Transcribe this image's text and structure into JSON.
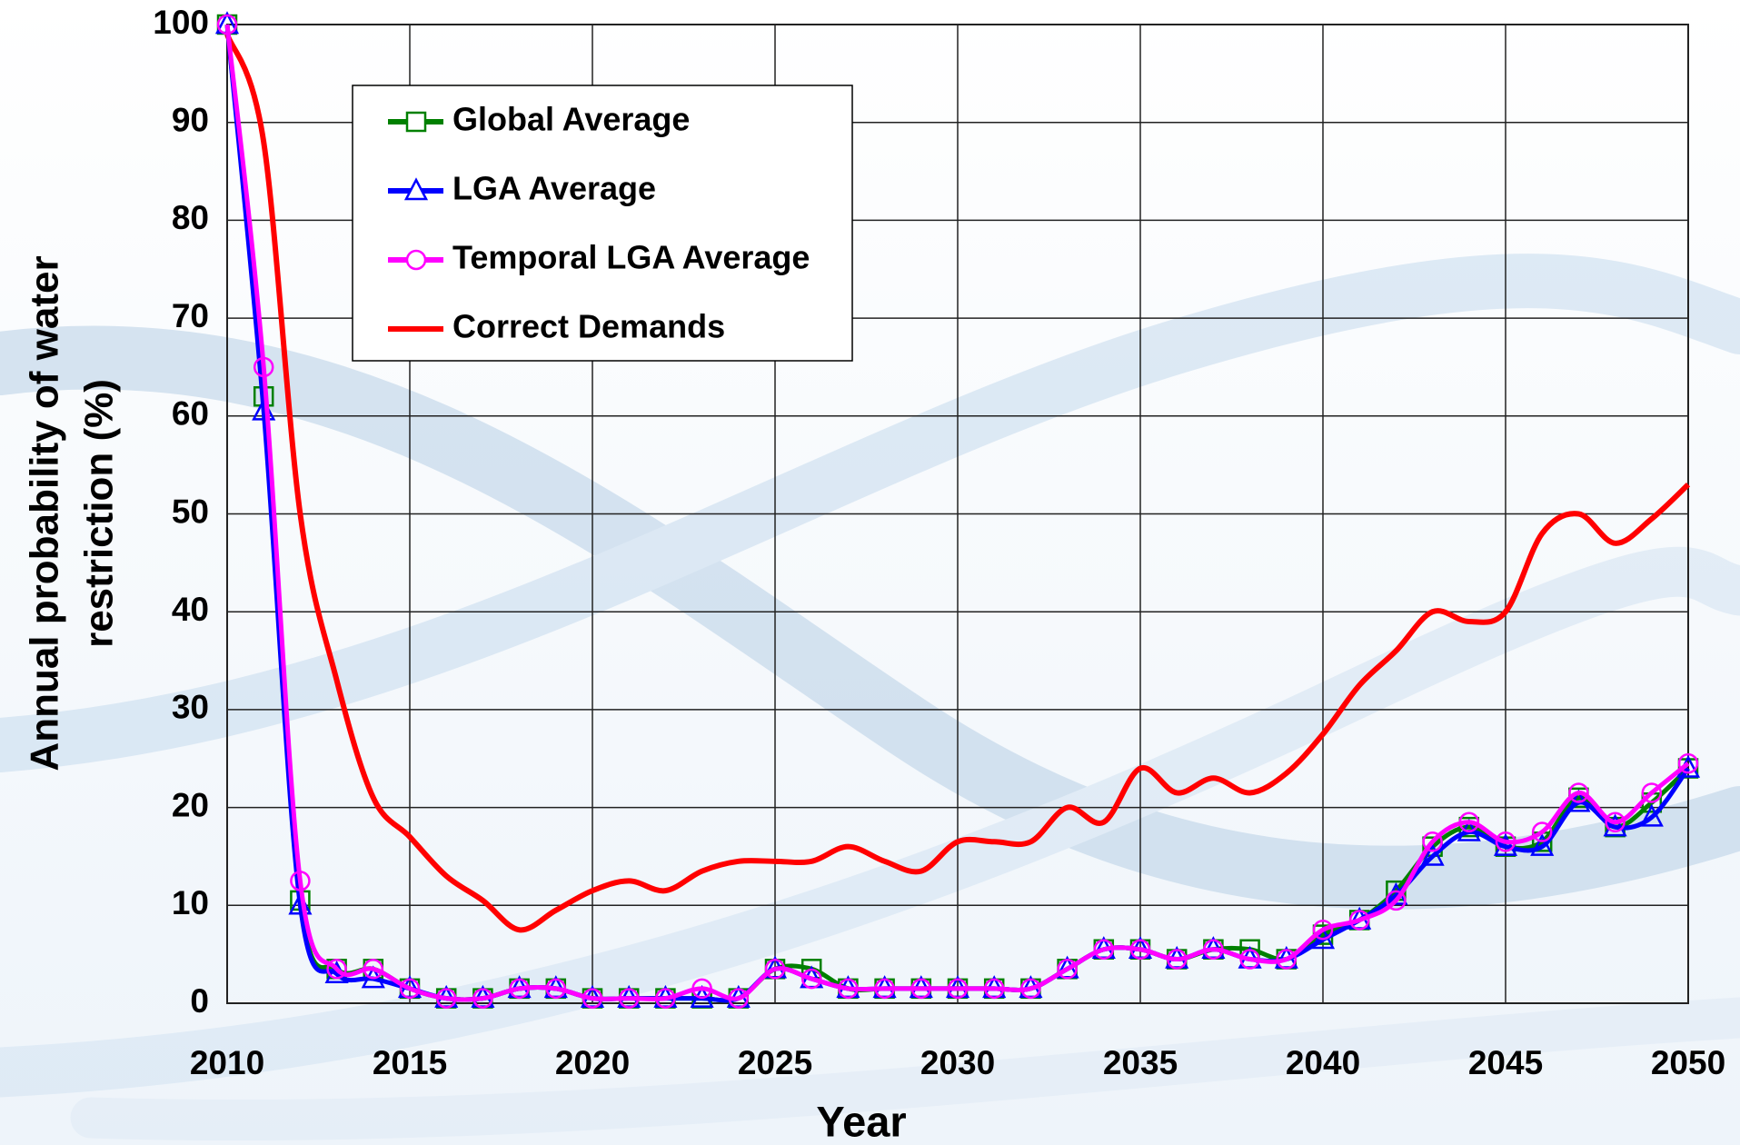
{
  "chart_data": {
    "type": "line",
    "x_label": "Year",
    "y_label": [
      "Annual probability of water",
      "restriction (%)"
    ],
    "x": [
      2010,
      2011,
      2012,
      2013,
      2014,
      2015,
      2016,
      2017,
      2018,
      2019,
      2020,
      2021,
      2022,
      2023,
      2024,
      2025,
      2026,
      2027,
      2028,
      2029,
      2030,
      2031,
      2032,
      2033,
      2034,
      2035,
      2036,
      2037,
      2038,
      2039,
      2040,
      2041,
      2042,
      2043,
      2044,
      2045,
      2046,
      2047,
      2048,
      2049,
      2050
    ],
    "series": [
      {
        "name": "Global Average",
        "color": "#008000",
        "marker": "square",
        "values": [
          100,
          62,
          10.5,
          3.5,
          3.5,
          1.5,
          0.5,
          0.5,
          1.5,
          1.5,
          0.5,
          0.5,
          0.5,
          0.5,
          0.5,
          3.5,
          3.5,
          1.5,
          1.5,
          1.5,
          1.5,
          1.5,
          1.5,
          3.5,
          5.5,
          5.5,
          4.5,
          5.5,
          5.5,
          4.5,
          7,
          8.5,
          11.5,
          16,
          18,
          16,
          16.5,
          21,
          18,
          20.5,
          24
        ]
      },
      {
        "name": "LGA Average",
        "color": "#0000ff",
        "marker": "triangle",
        "values": [
          100,
          60.5,
          10,
          3,
          2.5,
          1.5,
          0.5,
          0.5,
          1.5,
          1.5,
          0.5,
          0.5,
          0.5,
          0.5,
          0.5,
          3.5,
          2.5,
          1.5,
          1.5,
          1.5,
          1.5,
          1.5,
          1.5,
          3.5,
          5.5,
          5.5,
          4.5,
          5.5,
          4.5,
          4.5,
          6.5,
          8.5,
          11,
          15,
          17.5,
          16,
          16,
          20.5,
          18,
          19,
          24
        ]
      },
      {
        "name": "Temporal LGA Average",
        "color": "#ff00ff",
        "marker": "circle",
        "values": [
          100,
          65,
          12.5,
          3.5,
          3.5,
          1.5,
          0.5,
          0.5,
          1.5,
          1.5,
          0.5,
          0.5,
          0.5,
          1.5,
          0.5,
          3.5,
          2.5,
          1.5,
          1.5,
          1.5,
          1.5,
          1.5,
          1.5,
          3.5,
          5.5,
          5.5,
          4.5,
          5.5,
          4.5,
          4.5,
          7.5,
          8.5,
          10.5,
          16.5,
          18.5,
          16.5,
          17.5,
          21.5,
          18.5,
          21.5,
          24.5
        ]
      },
      {
        "name": "Correct Demands",
        "color": "#ff0000",
        "marker": null,
        "values": [
          99,
          88,
          50,
          33,
          21,
          17,
          13,
          10.5,
          7.5,
          9.5,
          11.5,
          12.5,
          11.5,
          13.5,
          14.5,
          14.5,
          14.5,
          16,
          14.5,
          13.5,
          16.5,
          16.5,
          16.5,
          20,
          18.5,
          24,
          21.5,
          23,
          21.5,
          23.5,
          27.5,
          32.5,
          36,
          40,
          39,
          40,
          48,
          50,
          47,
          49.5,
          53
        ]
      }
    ],
    "xlim": [
      2010,
      2050
    ],
    "xticks": [
      2010,
      2015,
      2020,
      2025,
      2030,
      2035,
      2040,
      2045,
      2050
    ],
    "ylim": [
      0,
      100
    ],
    "yticks": [
      0,
      10,
      20,
      30,
      40,
      50,
      60,
      70,
      80,
      90,
      100
    ],
    "grid": true,
    "smooth": true,
    "legend": "upper left"
  }
}
